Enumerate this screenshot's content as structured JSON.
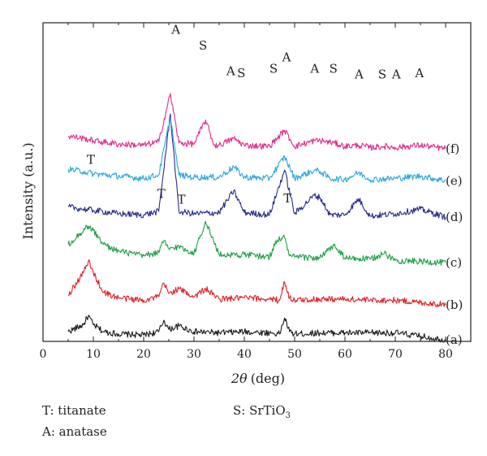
{
  "chart_data": {
    "type": "line",
    "xlabel_var": "2θ",
    "xlabel_unit": "(deg)",
    "ylabel": "Intensity (a.u.)",
    "xlim": [
      0,
      85
    ],
    "xticks": [
      0,
      10,
      20,
      30,
      40,
      50,
      60,
      70,
      80
    ],
    "grid": false,
    "series": [
      {
        "name": "(a)",
        "color": "#1a1a1a",
        "x": [
          5,
          8,
          9,
          10,
          12,
          15,
          20,
          23,
          24,
          25,
          27,
          30,
          35,
          40,
          45,
          47,
          48,
          49,
          50,
          55,
          60,
          65,
          70,
          75,
          80
        ],
        "y": [
          0.4,
          1.0,
          1.8,
          1.0,
          0.4,
          0.2,
          0.1,
          0.4,
          1.4,
          0.6,
          0.9,
          0.4,
          0.3,
          0.4,
          0.3,
          0.2,
          1.6,
          0.4,
          0.2,
          0.3,
          0.3,
          0.3,
          0.3,
          0.0,
          -0.3
        ]
      },
      {
        "name": "(b)",
        "color": "#e01f26",
        "x": [
          5,
          8,
          9,
          10,
          12,
          15,
          20,
          23,
          24,
          25,
          27,
          30,
          32.3,
          35,
          40,
          45,
          47,
          48,
          49,
          50,
          55,
          60,
          65,
          70,
          75,
          80
        ],
        "y": [
          0.6,
          2.6,
          3.6,
          2.6,
          0.9,
          0.4,
          0.2,
          0.5,
          1.7,
          0.8,
          1.2,
          0.5,
          1.2,
          0.3,
          0.4,
          0.3,
          0.2,
          1.8,
          0.4,
          0.2,
          0.3,
          0.3,
          0.2,
          0.2,
          0.0,
          -0.2
        ]
      },
      {
        "name": "(c)",
        "color": "#1e9e48",
        "x": [
          5,
          8,
          9,
          10,
          12,
          15,
          20,
          23,
          24,
          25,
          27,
          30,
          32.3,
          35,
          40,
          45,
          46.5,
          48,
          49,
          50,
          55,
          57.8,
          60,
          65,
          67.8,
          70,
          75,
          80
        ],
        "y": [
          1.6,
          2.8,
          3.2,
          2.8,
          1.6,
          1.0,
          0.6,
          0.9,
          1.9,
          1.2,
          1.4,
          0.8,
          3.6,
          0.7,
          0.7,
          0.5,
          2.0,
          2.2,
          0.6,
          0.5,
          0.4,
          1.5,
          0.4,
          0.3,
          0.8,
          0.2,
          0.1,
          0.0
        ]
      },
      {
        "name": "(d)",
        "color": "#262c8a",
        "x": [
          5,
          8,
          10,
          15,
          20,
          23,
          25.3,
          27,
          30,
          35,
          37.9,
          40,
          45,
          48,
          50,
          53.9,
          55.1,
          57,
          60,
          62.7,
          65,
          70,
          75,
          80
        ],
        "y": [
          1.2,
          1.0,
          0.9,
          0.6,
          0.5,
          0.8,
          9.3,
          0.8,
          0.6,
          0.7,
          2.6,
          0.7,
          0.5,
          4.4,
          0.6,
          2.2,
          2.0,
          0.5,
          0.5,
          1.9,
          0.4,
          0.6,
          1.0,
          0.3
        ]
      },
      {
        "name": "(e)",
        "color": "#2aa6dd",
        "x": [
          5,
          8,
          10,
          15,
          20,
          23,
          25.3,
          27,
          30,
          35,
          37.9,
          40,
          45,
          48,
          50,
          53.9,
          55.1,
          57,
          60,
          62.7,
          65,
          70,
          75,
          80
        ],
        "y": [
          1.4,
          1.2,
          1.0,
          0.8,
          0.6,
          0.9,
          5.9,
          0.9,
          0.7,
          0.7,
          1.6,
          0.7,
          0.6,
          2.5,
          0.6,
          1.3,
          1.2,
          0.6,
          0.5,
          1.1,
          0.5,
          0.6,
          0.8,
          0.4
        ]
      },
      {
        "name": "(f)",
        "color": "#e02a8c",
        "x": [
          5,
          8,
          10,
          15,
          20,
          23,
          25.3,
          27,
          30,
          32.3,
          34,
          35,
          37.9,
          40,
          45,
          46.5,
          48,
          50,
          53.9,
          55.1,
          57.8,
          60,
          62.7,
          65,
          67.8,
          70,
          75,
          80
        ],
        "y": [
          1.4,
          1.2,
          1.0,
          0.7,
          0.6,
          0.9,
          5.1,
          0.8,
          0.7,
          2.8,
          0.6,
          0.6,
          1.2,
          0.6,
          0.5,
          1.2,
          1.9,
          0.5,
          1.0,
          1.0,
          0.8,
          0.5,
          0.6,
          0.4,
          0.5,
          0.4,
          0.6,
          0.3
        ]
      }
    ],
    "annotations": [
      {
        "text": "A",
        "x": 26.4,
        "y_pct": 96.5
      },
      {
        "text": "S",
        "x": 31.8,
        "y_pct": 91.6
      },
      {
        "text": "A",
        "x": 37.3,
        "y_pct": 83.6
      },
      {
        "text": "S",
        "x": 39.4,
        "y_pct": 82.9
      },
      {
        "text": "S",
        "x": 45.8,
        "y_pct": 84.3
      },
      {
        "text": "A",
        "x": 48.4,
        "y_pct": 87.9
      },
      {
        "text": "A",
        "x": 54.0,
        "y_pct": 84.3
      },
      {
        "text": "S",
        "x": 57.7,
        "y_pct": 84.3
      },
      {
        "text": "A",
        "x": 62.8,
        "y_pct": 82.5
      },
      {
        "text": "S",
        "x": 67.4,
        "y_pct": 82.5
      },
      {
        "text": "A",
        "x": 70.2,
        "y_pct": 82.5
      },
      {
        "text": "A",
        "x": 74.8,
        "y_pct": 82.9
      },
      {
        "text": "T",
        "x": 9.5,
        "y_pct": 55.7
      },
      {
        "text": "T",
        "x": 23.5,
        "y_pct": 45.0
      },
      {
        "text": "T",
        "x": 27.5,
        "y_pct": 43.2
      },
      {
        "text": "T",
        "x": 48.6,
        "y_pct": 43.6
      }
    ]
  },
  "legend": {
    "titanate": "T: titanate",
    "anatase": "A: anatase",
    "srtio3_prefix": "S: SrTiO",
    "srtio3_sub": "3"
  }
}
